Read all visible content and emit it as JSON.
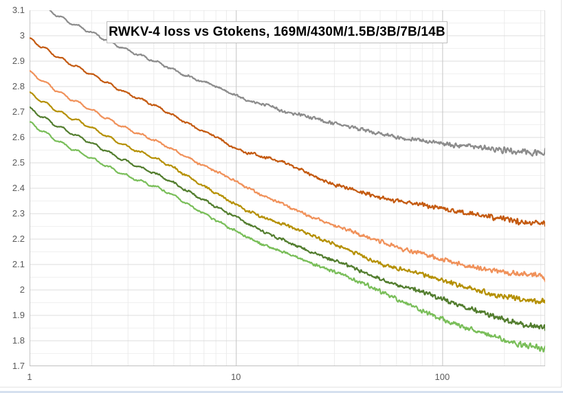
{
  "chart": {
    "title": "RWKV-4 loss vs Gtokens, 169M/430M/1.5B/3B/7B/14B",
    "y_tick_labels": [
      "3.1",
      "3",
      "2.9",
      "2.8",
      "2.7",
      "2.6",
      "2.5",
      "2.4",
      "2.3",
      "2.2",
      "2.1",
      "2",
      "1.9",
      "1.8",
      "1.7"
    ],
    "x_tick_labels": [
      "1",
      "10",
      "100"
    ]
  },
  "chart_data": {
    "type": "line",
    "title": "RWKV-4 loss vs Gtokens, 169M/430M/1.5B/3B/7B/14B",
    "xlabel": "",
    "ylabel": "",
    "x_scale": "log10",
    "xlim": [
      1,
      315
    ],
    "ylim": [
      1.7,
      3.1
    ],
    "x_ticks": [
      1,
      10,
      100
    ],
    "y_tick_step": 0.1,
    "y_minor_step": 0.05,
    "grid": "on",
    "legend_position": "none",
    "series": [
      {
        "name": "169M",
        "color": "#8C8C8C",
        "points": [
          [
            1,
            3.15
          ],
          [
            1.6,
            3.05
          ],
          [
            2,
            3.01
          ],
          [
            3,
            2.945
          ],
          [
            5,
            2.865
          ],
          [
            8,
            2.8
          ],
          [
            10,
            2.765
          ],
          [
            13,
            2.735
          ],
          [
            15,
            2.725
          ],
          [
            17,
            2.7
          ],
          [
            20,
            2.69
          ],
          [
            30,
            2.655
          ],
          [
            50,
            2.615
          ],
          [
            100,
            2.575
          ],
          [
            150,
            2.56
          ],
          [
            200,
            2.55
          ],
          [
            260,
            2.543
          ],
          [
            315,
            2.538
          ]
        ]
      },
      {
        "name": "430M",
        "color": "#C45A10",
        "points": [
          [
            1,
            2.985
          ],
          [
            2,
            2.845
          ],
          [
            3,
            2.775
          ],
          [
            5,
            2.685
          ],
          [
            8,
            2.6
          ],
          [
            10,
            2.555
          ],
          [
            15,
            2.515
          ],
          [
            17,
            2.5
          ],
          [
            20,
            2.475
          ],
          [
            30,
            2.415
          ],
          [
            50,
            2.365
          ],
          [
            100,
            2.32
          ],
          [
            150,
            2.295
          ],
          [
            200,
            2.278
          ],
          [
            260,
            2.268
          ],
          [
            315,
            2.263
          ]
        ]
      },
      {
        "name": "1.5B",
        "color": "#F0915A",
        "points": [
          [
            1,
            2.855
          ],
          [
            2,
            2.705
          ],
          [
            3,
            2.635
          ],
          [
            5,
            2.55
          ],
          [
            10,
            2.425
          ],
          [
            20,
            2.31
          ],
          [
            30,
            2.255
          ],
          [
            50,
            2.19
          ],
          [
            100,
            2.12
          ],
          [
            200,
            2.068
          ],
          [
            315,
            2.052
          ]
        ]
      },
      {
        "name": "3B",
        "color": "#B59000",
        "points": [
          [
            1,
            2.77
          ],
          [
            2,
            2.635
          ],
          [
            3,
            2.565
          ],
          [
            5,
            2.48
          ],
          [
            10,
            2.335
          ],
          [
            20,
            2.235
          ],
          [
            30,
            2.18
          ],
          [
            50,
            2.105
          ],
          [
            100,
            2.04
          ],
          [
            200,
            1.972
          ],
          [
            315,
            1.952
          ]
        ]
      },
      {
        "name": "7B",
        "color": "#527D2E",
        "points": [
          [
            1,
            2.71
          ],
          [
            2,
            2.575
          ],
          [
            3,
            2.505
          ],
          [
            5,
            2.42
          ],
          [
            10,
            2.285
          ],
          [
            20,
            2.17
          ],
          [
            30,
            2.115
          ],
          [
            50,
            2.045
          ],
          [
            100,
            1.965
          ],
          [
            200,
            1.885
          ],
          [
            315,
            1.852
          ]
        ]
      },
      {
        "name": "14B",
        "color": "#79BE59",
        "points": [
          [
            1,
            2.655
          ],
          [
            2,
            2.515
          ],
          [
            3,
            2.45
          ],
          [
            5,
            2.37
          ],
          [
            10,
            2.23
          ],
          [
            20,
            2.125
          ],
          [
            30,
            2.072
          ],
          [
            50,
            1.995
          ],
          [
            100,
            1.885
          ],
          [
            200,
            1.803
          ],
          [
            315,
            1.763
          ]
        ]
      }
    ]
  }
}
